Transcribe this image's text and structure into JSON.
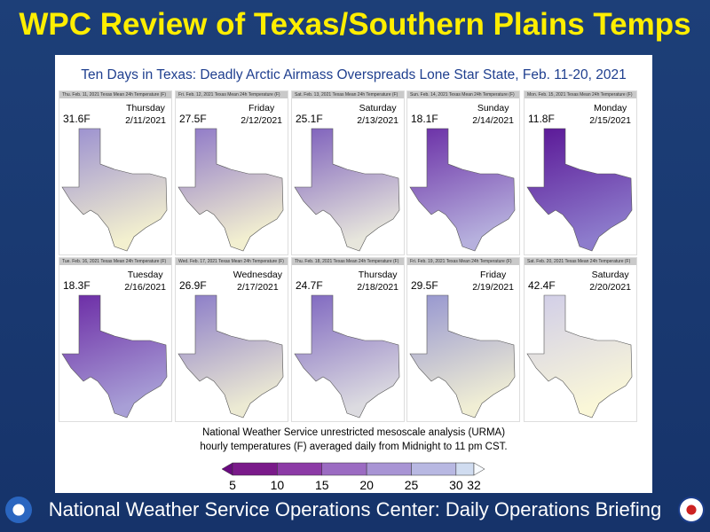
{
  "header": {
    "title": "WPC Review of Texas/Southern Plains Temps"
  },
  "slide": {
    "subtitle": "Ten Days in Texas: Deadly Arctic Airmass Overspreads Lone Star State, Feb. 11-20, 2021",
    "panels": [
      {
        "header": "Thu. Feb. 11, 2021 Texas Mean 24h Temperature (F)",
        "mean": "31.6F",
        "day": "Thursday",
        "date": "2/11/2021"
      },
      {
        "header": "Fri. Feb. 12, 2021 Texas Mean 24h Temperature (F)",
        "mean": "27.5F",
        "day": "Friday",
        "date": "2/12/2021"
      },
      {
        "header": "Sat. Feb. 13, 2021 Texas Mean 24h Temperature (F)",
        "mean": "25.1F",
        "day": "Saturday",
        "date": "2/13/2021"
      },
      {
        "header": "Sun. Feb. 14, 2021 Texas Mean 24h Temperature (F)",
        "mean": "18.1F",
        "day": "Sunday",
        "date": "2/14/2021"
      },
      {
        "header": "Mon. Feb. 15, 2021 Texas Mean 24h Temperature (F)",
        "mean": "11.8F",
        "day": "Monday",
        "date": "2/15/2021"
      },
      {
        "header": "Tue. Feb. 16, 2021 Texas Mean 24h Temperature (F)",
        "mean": "18.3F",
        "day": "Tuesday",
        "date": "2/16/2021"
      },
      {
        "header": "Wed. Feb. 17, 2021 Texas Mean 24h Temperature (F)",
        "mean": "26.9F",
        "day": "Wednesday",
        "date": "2/17/2021"
      },
      {
        "header": "Thu. Feb. 18, 2021 Texas Mean 24h Temperature (F)",
        "mean": "24.7F",
        "day": "Thursday",
        "date": "2/18/2021"
      },
      {
        "header": "Fri. Feb. 19, 2021 Texas Mean 24h Temperature (F)",
        "mean": "29.5F",
        "day": "Friday",
        "date": "2/19/2021"
      },
      {
        "header": "Sat. Feb. 20, 2021 Texas Mean 24h Temperature (F)",
        "mean": "42.4F",
        "day": "Saturday",
        "date": "2/20/2021"
      }
    ],
    "caption": [
      "National Weather Service unrestricted mesoscale analysis (URMA)",
      "hourly temperatures (F) averaged daily from Midnight to 11 pm CST."
    ],
    "colorbar": {
      "ticks": [
        5,
        10,
        15,
        20,
        25,
        30,
        32
      ]
    }
  },
  "footer": {
    "text": "National Weather Service Operations Center: Daily Operations Briefing"
  }
}
